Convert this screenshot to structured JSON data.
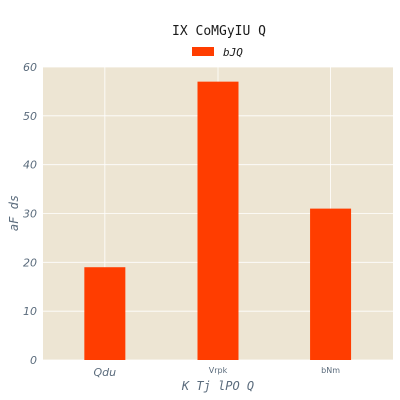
{
  "chart_data": {
    "type": "bar",
    "title": "IX  CoMGyIU Q",
    "xlabel": "K Tj lPO Q",
    "ylabel": "aF ds",
    "categories": [
      "Qdu",
      "Vrpk",
      "bNm"
    ],
    "series": [
      {
        "name": "bJQ",
        "values": [
          19,
          57,
          31
        ],
        "color": "#ff3d00"
      }
    ],
    "ylim": [
      0,
      60
    ],
    "yticks": [
      0,
      10,
      20,
      30,
      40,
      50,
      60
    ],
    "grid": true,
    "legend_position": "top-center",
    "plot_background": "#ede5d3",
    "grid_color": "#ffffff"
  }
}
